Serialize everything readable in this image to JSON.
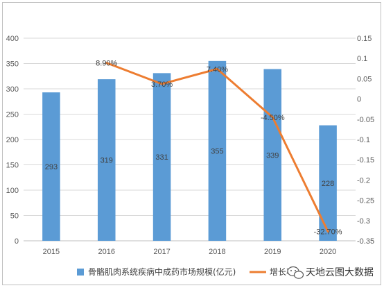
{
  "chart_data": {
    "type": "bar+line",
    "categories": [
      "2015",
      "2016",
      "2017",
      "2018",
      "2019",
      "2020"
    ],
    "series": [
      {
        "name": "骨骼肌肉系统疾病中成药市场规模(亿元)",
        "type": "bar",
        "axis": "left",
        "values": [
          293,
          319,
          331,
          355,
          339,
          228
        ],
        "labels": [
          "293",
          "319",
          "331",
          "355",
          "339",
          "228"
        ],
        "color": "#5b9bd5"
      },
      {
        "name": "增长率",
        "type": "line",
        "axis": "right",
        "values": [
          null,
          0.089,
          0.037,
          0.074,
          -0.045,
          -0.327
        ],
        "labels": [
          "",
          "8.90%",
          "3.70%",
          "7.40%",
          "-4.50%",
          "-32.70%"
        ],
        "color": "#ed7d31"
      }
    ],
    "y_left": {
      "min": 0,
      "max": 400,
      "ticks": [
        "0",
        "50",
        "100",
        "150",
        "200",
        "250",
        "300",
        "350",
        "400"
      ]
    },
    "y_right": {
      "min": -0.35,
      "max": 0.15,
      "ticks": [
        "0.15",
        "0.1",
        "0.05",
        "0",
        "-0.05",
        "-0.1",
        "-0.15",
        "-0.2",
        "-0.25",
        "-0.3",
        "-0.35"
      ]
    },
    "grid": true,
    "legend": "bottom"
  },
  "watermark": {
    "text": "天地云图大数据",
    "icon": "wechat-icon"
  }
}
